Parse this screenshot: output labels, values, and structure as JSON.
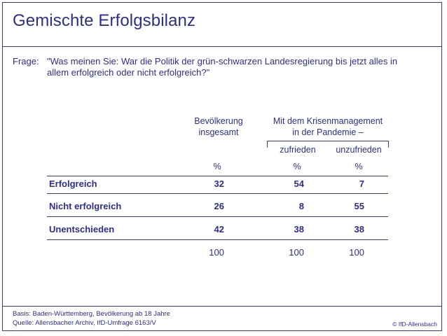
{
  "title": "Gemischte Erfolgsbilanz",
  "question": {
    "label": "Frage:",
    "text": "\"Was meinen Sie: War die Politik der grün-schwarzen Landesregierung bis jetzt alles in allem erfolgreich oder nicht erfolgreich?\""
  },
  "columns": {
    "total_line1": "Bevölkerung",
    "total_line2": "insgesamt",
    "crisis_line1": "Mit dem Krisenmanagement",
    "crisis_line2": "in der Pandemie –",
    "satisfied": "zufrieden",
    "dissatisfied": "unzufrieden",
    "unit": "%"
  },
  "rows": [
    {
      "label": "Erfolgreich",
      "total": "32",
      "satisfied": "54",
      "dissatisfied": "7"
    },
    {
      "label": "Nicht erfolgreich",
      "total": "26",
      "satisfied": "8",
      "dissatisfied": "55"
    },
    {
      "label": "Unentschieden",
      "total": "42",
      "satisfied": "38",
      "dissatisfied": "38"
    }
  ],
  "totals": {
    "total": "100",
    "satisfied": "100",
    "dissatisfied": "100"
  },
  "footer": {
    "basis": "Basis: Baden-Württemberg, Bevölkerung ab 18 Jahre",
    "source": "Quelle: Allensbacher Archiv, IfD-Umfrage 6163/V",
    "copyright": "© IfD-Allensbach"
  }
}
